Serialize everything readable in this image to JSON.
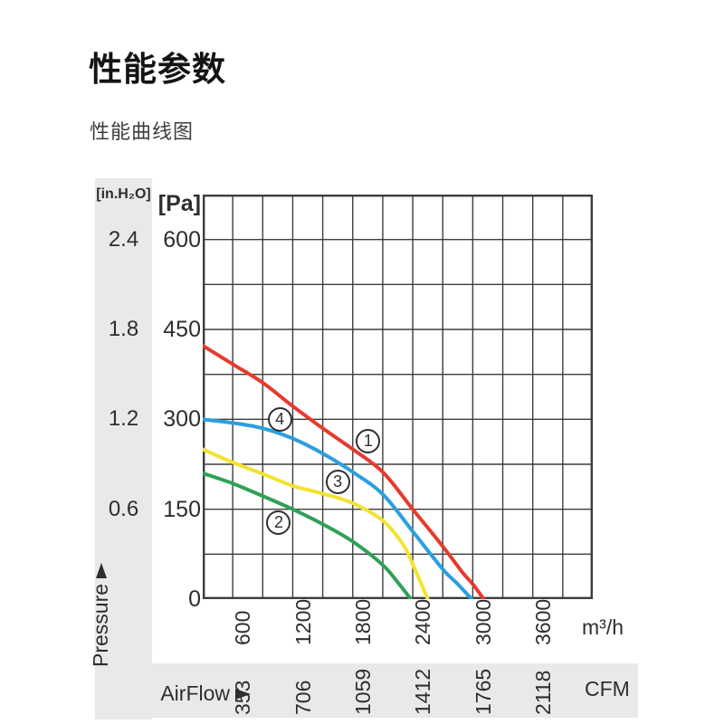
{
  "page": {
    "title": "性能参数",
    "subtitle": "性能曲线图"
  },
  "chart_data": {
    "type": "line",
    "title": "性能曲线图",
    "grid": true,
    "legend_position": "on-curve-circled-numbers",
    "x_axis": {
      "label": "AirFlow",
      "range": [
        0,
        3900
      ],
      "minor_step": 300,
      "units": [
        {
          "name": "m³/h",
          "ticks": [
            600,
            1200,
            1800,
            2400,
            3000,
            3600
          ]
        },
        {
          "name": "CFM",
          "ticks": [
            353,
            706,
            1059,
            1412,
            1765,
            2118
          ]
        }
      ]
    },
    "y_axis": {
      "label": "Pressure",
      "range": [
        0,
        675
      ],
      "minor_step": 75,
      "units": [
        {
          "name": "[Pa]",
          "ticks": [
            600,
            450,
            300,
            150,
            0
          ]
        },
        {
          "name": "[in.H₂O]",
          "ticks": [
            2.4,
            1.8,
            1.2,
            0.6
          ]
        }
      ]
    },
    "series": [
      {
        "curve": "2",
        "color": "#2ea156",
        "marker": {
          "text": "2",
          "flow": 760,
          "pa": 127
        },
        "points": [
          [
            0,
            210
          ],
          [
            300,
            193
          ],
          [
            600,
            172
          ],
          [
            900,
            150
          ],
          [
            1200,
            125
          ],
          [
            1500,
            96
          ],
          [
            1800,
            57
          ],
          [
            1950,
            28
          ],
          [
            2080,
            0
          ]
        ]
      },
      {
        "curve": "3",
        "color": "#f2e332",
        "marker": {
          "text": "3",
          "flow": 1350,
          "pa": 195
        },
        "points": [
          [
            0,
            250
          ],
          [
            300,
            228
          ],
          [
            600,
            209
          ],
          [
            900,
            189
          ],
          [
            1200,
            176
          ],
          [
            1500,
            160
          ],
          [
            1800,
            131
          ],
          [
            2000,
            92
          ],
          [
            2100,
            58
          ],
          [
            2250,
            0
          ]
        ]
      },
      {
        "curve": "4",
        "color": "#2b9ee0",
        "marker": {
          "text": "4",
          "flow": 770,
          "pa": 299
        },
        "points": [
          [
            0,
            300
          ],
          [
            300,
            294
          ],
          [
            600,
            285
          ],
          [
            900,
            268
          ],
          [
            1200,
            243
          ],
          [
            1500,
            212
          ],
          [
            1800,
            175
          ],
          [
            2100,
            113
          ],
          [
            2400,
            50
          ],
          [
            2550,
            25
          ],
          [
            2690,
            0
          ]
        ]
      },
      {
        "curve": "1",
        "color": "#e63a2e",
        "marker": {
          "text": "1",
          "flow": 1655,
          "pa": 263
        },
        "points": [
          [
            0,
            423
          ],
          [
            300,
            392
          ],
          [
            600,
            361
          ],
          [
            900,
            322
          ],
          [
            1200,
            285
          ],
          [
            1500,
            250
          ],
          [
            1800,
            212
          ],
          [
            2100,
            150
          ],
          [
            2400,
            88
          ],
          [
            2600,
            44
          ],
          [
            2700,
            25
          ],
          [
            2810,
            0
          ]
        ]
      }
    ]
  },
  "colors": {
    "strip": "#e9e9e9",
    "grid": "#3d3d3d",
    "axis_text": "#2e2e2e",
    "marker_bg": "#ffffff"
  }
}
